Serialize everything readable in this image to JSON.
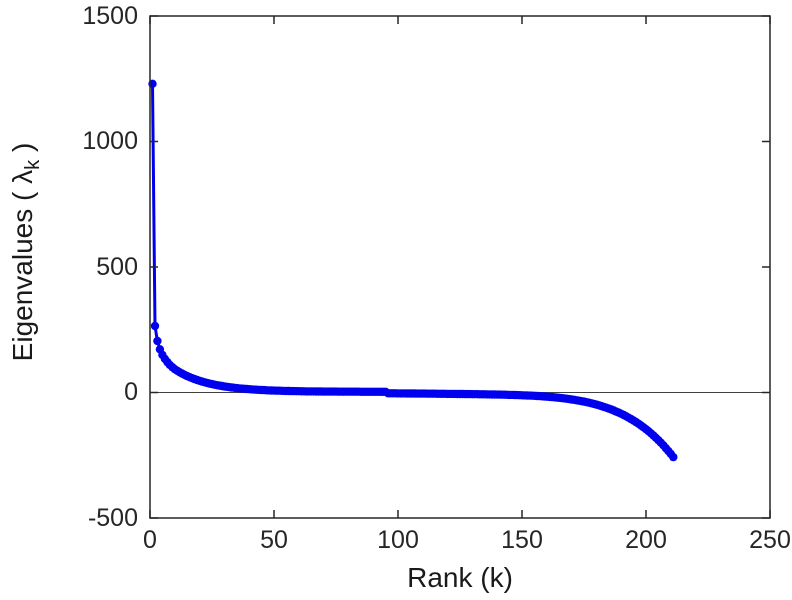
{
  "figure": {
    "background": "#ffffff"
  },
  "chart_data": {
    "type": "line",
    "title": "",
    "xlabel": "Rank (k)",
    "ylabel": "Eigenvalues ( λk )",
    "ylabel_parts": {
      "prefix": "Eigenvalues ( λ",
      "sub": "k",
      "suffix": " )"
    },
    "xlim": [
      0,
      250
    ],
    "ylim": [
      -500,
      1500
    ],
    "xticks": [
      0,
      50,
      100,
      150,
      200,
      250
    ],
    "yticks": [
      -500,
      0,
      500,
      1000,
      1500
    ],
    "xtick_labels": [
      "0",
      "50",
      "100",
      "150",
      "200",
      "250"
    ],
    "ytick_labels": [
      "-500",
      "0",
      "500",
      "1000",
      "1500"
    ],
    "grid": false,
    "zero_line": true,
    "legend": "none",
    "line_color": "#0000EE",
    "zero_line_color": "#404040",
    "axis_color": "#262626",
    "marker": "circle",
    "series": [
      {
        "name": "eigenvalues",
        "x_start": 1,
        "values": [
          1230,
          265,
          205,
          172,
          150,
          134,
          121,
          110,
          101,
          93,
          86.3,
          80.5,
          75.1,
          70.1,
          65.5,
          61.1,
          57.1,
          53.3,
          49.8,
          46.6,
          43.5,
          40.7,
          38.1,
          35.6,
          33.3,
          31.2,
          29.2,
          27.4,
          25.7,
          24.1,
          22.6,
          21.2,
          19.9,
          18.7,
          17.6,
          16.5,
          15.6,
          14.7,
          13.8,
          13.1,
          12.3,
          11.6,
          11.0,
          10.4,
          9.9,
          9.4,
          8.9,
          8.5,
          8.1,
          7.7,
          7.3,
          7.0,
          6.7,
          6.4,
          6.1,
          5.9,
          5.6,
          5.4,
          5.2,
          5.0,
          4.9,
          4.7,
          4.5,
          4.4,
          4.3,
          4.2,
          4.0,
          3.9,
          3.8,
          3.7,
          3.7,
          3.6,
          3.5,
          3.4,
          3.4,
          3.3,
          3.3,
          3.2,
          3.2,
          3.1,
          3.1,
          3.0,
          3.0,
          3.0,
          2.9,
          2.9,
          2.9,
          2.8,
          2.8,
          2.8,
          2.8,
          2.8,
          2.7,
          2.7,
          2.7,
          -3.0,
          -3.1,
          -3.2,
          -3.3,
          -3.4,
          -3.5,
          -3.6,
          -3.7,
          -3.8,
          -3.9,
          -4.0,
          -4.1,
          -4.2,
          -4.3,
          -4.4,
          -4.5,
          -4.6,
          -4.7,
          -4.8,
          -4.9,
          -5.0,
          -5.1,
          -5.2,
          -5.3,
          -5.4,
          -5.5,
          -5.6,
          -5.7,
          -5.8,
          -6.0,
          -6.1,
          -6.2,
          -6.3,
          -6.4,
          -6.6,
          -6.7,
          -6.8,
          -7.0,
          -7.1,
          -7.3,
          -7.4,
          -7.6,
          -7.8,
          -8.0,
          -8.2,
          -8.4,
          -8.6,
          -8.8,
          -9.1,
          -9.4,
          -9.6,
          -9.9,
          -10.3,
          -10.6,
          -11.0,
          -11.4,
          -11.8,
          -12.3,
          -12.8,
          -13.3,
          -13.9,
          -14.5,
          -15.2,
          -15.9,
          -16.6,
          -17.4,
          -18.3,
          -19.2,
          -20.2,
          -21.2,
          -22.4,
          -23.5,
          -24.8,
          -26.2,
          -27.7,
          -29.2,
          -30.9,
          -32.6,
          -34.5,
          -36.4,
          -38.5,
          -40.8,
          -43.1,
          -45.6,
          -48.3,
          -51.1,
          -54.1,
          -57.2,
          -60.6,
          -64.1,
          -67.8,
          -71.7,
          -75.9,
          -80.2,
          -84.8,
          -89.7,
          -94.8,
          -100.2,
          -105.8,
          -111.8,
          -118.0,
          -124.6,
          -131.5,
          -138.7,
          -146.3,
          -154.2,
          -162.5,
          -171.3,
          -180.4,
          -190.0,
          -200.0,
          -210.5,
          -221.4,
          -232.9,
          -244.8,
          -257.4
        ]
      }
    ]
  }
}
